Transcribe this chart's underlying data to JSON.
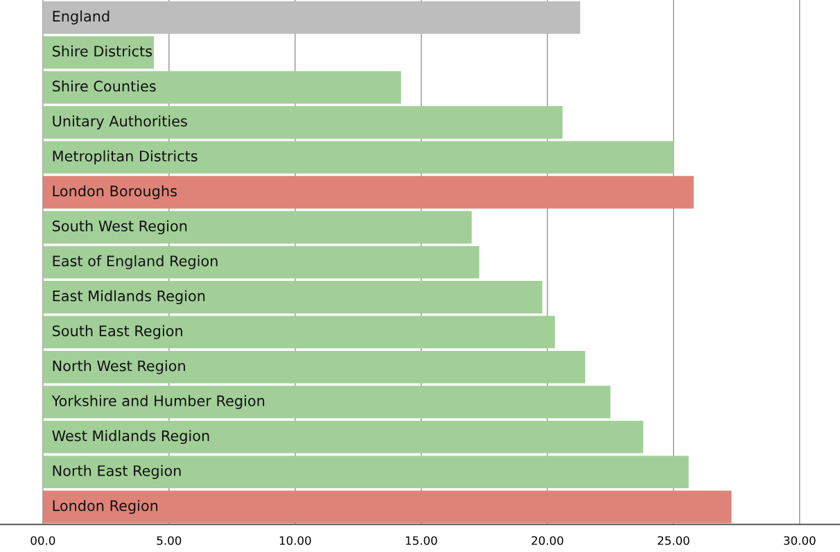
{
  "chart_data": {
    "type": "bar",
    "orientation": "horizontal",
    "categories": [
      "England",
      "Shire Districts",
      "Shire Counties",
      "Unitary Authorities",
      "Metroplitan Districts",
      "London Boroughs",
      "South West Region",
      "East of England Region",
      "East Midlands Region",
      "South East Region",
      "North West Region",
      "Yorkshire and Humber Region",
      "West Midlands Region",
      "North East Region",
      "London Region"
    ],
    "values": [
      21.3,
      4.4,
      14.2,
      20.6,
      25.0,
      25.8,
      17.0,
      17.3,
      19.8,
      20.3,
      21.5,
      22.5,
      23.8,
      25.6,
      27.3
    ],
    "colors": [
      "#bdbdbd",
      "#a2cf98",
      "#a2cf98",
      "#a2cf98",
      "#a2cf98",
      "#df8378",
      "#a2cf98",
      "#a2cf98",
      "#a2cf98",
      "#a2cf98",
      "#a2cf98",
      "#a2cf98",
      "#a2cf98",
      "#a2cf98",
      "#df8378"
    ],
    "xlim": [
      -1.7,
      31.6
    ],
    "xticks": [
      {
        "value": 0,
        "label": "00.0"
      },
      {
        "value": 5,
        "label": "5.00"
      },
      {
        "value": 10,
        "label": "10.00"
      },
      {
        "value": 15,
        "label": "15.00"
      },
      {
        "value": 20,
        "label": "20.00"
      },
      {
        "value": 25,
        "label": "25.00"
      },
      {
        "value": 30,
        "label": "30.00"
      }
    ],
    "grid": "x"
  }
}
